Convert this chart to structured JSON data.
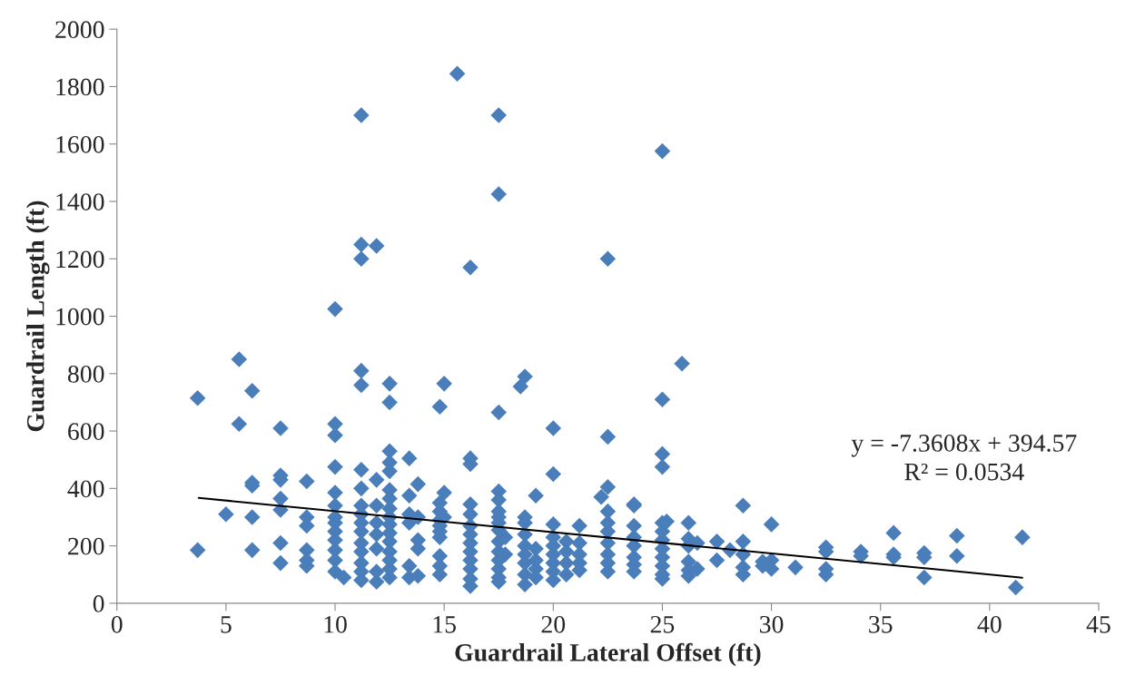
{
  "chart_data": {
    "type": "scatter",
    "xlabel": "Guardrail Lateral Offset (ft)",
    "ylabel": "Guardrail Length (ft)",
    "xlim": [
      0,
      45
    ],
    "xticks": [
      0,
      5,
      10,
      15,
      20,
      25,
      30,
      35,
      40,
      45
    ],
    "ylim": [
      0,
      2000
    ],
    "yticks": [
      0,
      200,
      400,
      600,
      800,
      1000,
      1200,
      1400,
      1600,
      1800,
      2000
    ],
    "grid": false,
    "legend": false,
    "series": [
      {
        "marker": "diamond",
        "color": "#4a7ebb",
        "x": [
          3.7,
          3.7,
          5,
          5.6,
          5.6,
          6.2,
          6.2,
          6.2,
          6.2,
          6.2,
          7.5,
          7.5,
          7.5,
          7.5,
          7.5,
          7.5,
          7.5,
          8.7,
          8.7,
          8.7,
          8.7,
          8.7,
          8.7,
          10,
          10,
          10,
          10,
          10,
          10,
          10,
          10,
          10,
          10,
          10,
          10,
          10,
          10.4,
          11.2,
          11.2,
          11.2,
          11.2,
          11.2,
          11.2,
          11.2,
          11.2,
          11.2,
          11.2,
          11.2,
          11.2,
          11.2,
          11.2,
          11.2,
          11.2,
          11.9,
          11.9,
          11.9,
          11.9,
          11.9,
          11.9,
          11.9,
          11.9,
          12.5,
          12.5,
          12.5,
          12.5,
          12.5,
          12.5,
          12.5,
          12.5,
          12.5,
          12.5,
          12.5,
          12.5,
          12.5,
          12.5,
          12.5,
          12.5,
          13.4,
          13.4,
          13.4,
          13.4,
          13.4,
          13.4,
          13.8,
          13.8,
          13.8,
          13.8,
          13.8,
          14.8,
          14.8,
          14.8,
          14.8,
          14.8,
          14.8,
          14.8,
          14.8,
          14.8,
          14.8,
          15,
          15,
          15,
          15.6,
          16.2,
          16.2,
          16.2,
          16.2,
          16.2,
          16.2,
          16.2,
          16.2,
          16.2,
          16.2,
          16.2,
          16.2,
          16.2,
          17.5,
          17.5,
          17.5,
          17.5,
          17.5,
          17.5,
          17.5,
          17.5,
          17.5,
          17.5,
          17.5,
          17.5,
          17.5,
          17.5,
          17.5,
          17.8,
          17.8,
          18.5,
          18.7,
          18.7,
          18.7,
          18.7,
          18.7,
          18.7,
          18.7,
          18.7,
          18.7,
          19.2,
          19.2,
          19.2,
          19.2,
          19.2,
          20,
          20,
          20,
          20,
          20,
          20,
          20,
          20,
          20,
          20.6,
          20.6,
          20.6,
          20.6,
          21.2,
          21.2,
          21.2,
          21.2,
          21.2,
          22.2,
          22.5,
          22.5,
          22.5,
          22.5,
          22.5,
          22.5,
          22.5,
          22.5,
          22.5,
          22.5,
          23.7,
          23.7,
          23.7,
          23.7,
          23.7,
          23.7,
          23.7,
          23.7,
          25,
          25,
          25,
          25,
          25,
          25,
          25,
          25,
          25,
          25,
          25,
          25,
          25.2,
          25.9,
          26.2,
          26.2,
          26.2,
          26.2,
          26.2,
          26.2,
          26.6,
          26.6,
          27.5,
          27.5,
          28.1,
          28.7,
          28.7,
          28.7,
          28.7,
          28.7,
          29.6,
          29.6,
          30,
          30,
          30,
          31.1,
          32.5,
          32.5,
          32.5,
          32.5,
          34.1,
          34.1,
          35.6,
          35.6,
          35.6,
          37,
          37,
          37,
          38.5,
          38.5,
          41.2,
          41.5
        ],
        "values": [
          715,
          185,
          310,
          850,
          625,
          740,
          420,
          410,
          300,
          185,
          610,
          445,
          430,
          365,
          325,
          210,
          140,
          425,
          300,
          270,
          185,
          150,
          130,
          1025,
          625,
          585,
          475,
          385,
          340,
          300,
          280,
          250,
          220,
          185,
          150,
          110,
          90,
          1700,
          1250,
          1200,
          810,
          760,
          465,
          400,
          340,
          310,
          280,
          250,
          210,
          180,
          140,
          110,
          80,
          1245,
          430,
          340,
          280,
          240,
          190,
          110,
          75,
          765,
          700,
          530,
          490,
          460,
          395,
          365,
          330,
          300,
          275,
          245,
          215,
          180,
          150,
          120,
          90,
          505,
          375,
          310,
          280,
          130,
          90,
          415,
          300,
          220,
          190,
          95,
          685,
          350,
          320,
          290,
          270,
          250,
          230,
          165,
          130,
          100,
          765,
          385,
          300,
          1845,
          1170,
          505,
          485,
          345,
          310,
          270,
          240,
          210,
          180,
          150,
          120,
          85,
          60,
          1700,
          1425,
          665,
          390,
          360,
          320,
          300,
          280,
          255,
          215,
          180,
          150,
          120,
          90,
          75,
          230,
          170,
          755,
          790,
          300,
          280,
          240,
          200,
          170,
          140,
          100,
          65,
          375,
          190,
          150,
          120,
          90,
          610,
          450,
          275,
          230,
          200,
          170,
          140,
          110,
          80,
          215,
          180,
          140,
          100,
          270,
          210,
          170,
          140,
          115,
          370,
          1200,
          580,
          405,
          320,
          280,
          250,
          210,
          170,
          140,
          110,
          345,
          340,
          270,
          230,
          200,
          160,
          135,
          110,
          1575,
          710,
          520,
          475,
          280,
          250,
          220,
          190,
          160,
          130,
          100,
          85,
          285,
          835,
          280,
          225,
          200,
          145,
          115,
          95,
          210,
          120,
          215,
          150,
          185,
          340,
          215,
          170,
          125,
          100,
          145,
          130,
          275,
          150,
          120,
          125,
          195,
          180,
          120,
          100,
          180,
          165,
          245,
          170,
          160,
          175,
          160,
          90,
          235,
          165,
          55,
          230
        ]
      },
      {
        "type": "line",
        "marker": "none",
        "color": "#000000",
        "x": [
          3.75,
          41.5
        ],
        "values": [
          367,
          89
        ]
      }
    ],
    "annotations": [
      "y = -7.3608x + 394.57",
      "R² = 0.0534"
    ]
  }
}
